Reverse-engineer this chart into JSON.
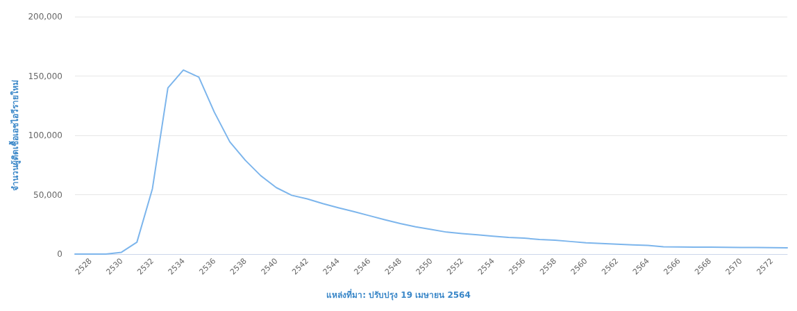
{
  "chart_data": {
    "type": "line",
    "ylabel": "จำนวนผู้ติดเชื้อเอชไอวีรายใหม่",
    "annotations": [
      "แหล่งที่มา: ปรับปรุง 19 เมษายน 2564"
    ],
    "categories": [
      null,
      "2528",
      null,
      "2530",
      null,
      "2532",
      null,
      "2534",
      null,
      "2536",
      null,
      "2538",
      null,
      "2540",
      null,
      "2542",
      null,
      "2544",
      null,
      "2546",
      null,
      "2548",
      null,
      "2550",
      null,
      "2552",
      null,
      "2554",
      null,
      "2556",
      null,
      "2558",
      null,
      "2560",
      null,
      "2562",
      null,
      "2564",
      null,
      "2566",
      null,
      "2568",
      null,
      "2570",
      null,
      "2572",
      null
    ],
    "series": [
      {
        "color": "#7cb5ec",
        "values": [
          0,
          0,
          0,
          1500,
          10000,
          55000,
          140000,
          155000,
          149000,
          119500,
          94500,
          79000,
          66000,
          56000,
          49500,
          46500,
          42500,
          39000,
          35800,
          32400,
          29000,
          25700,
          23000,
          20700,
          18500,
          17300,
          16200,
          15100,
          14000,
          13400,
          12300,
          11700,
          10600,
          9500,
          8900,
          8400,
          7800,
          7300,
          6100,
          6000,
          5900,
          5800,
          5700,
          5600,
          5500,
          5400,
          5300
        ]
      }
    ],
    "ylim": [
      0,
      200000
    ],
    "yticks": [
      {
        "value": 0,
        "label": "0"
      },
      {
        "value": 50000,
        "label": "50,000"
      },
      {
        "value": 100000,
        "label": "100,000"
      },
      {
        "value": 150000,
        "label": "150,000"
      },
      {
        "value": 200000,
        "label": "200,000"
      }
    ],
    "grid": "y",
    "marker": "none",
    "line_style": "solid"
  }
}
